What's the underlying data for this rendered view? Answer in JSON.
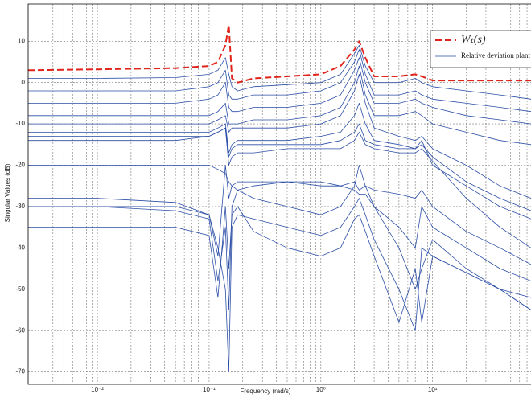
{
  "chart_data": {
    "type": "line",
    "xlabel": "Frequency (rad/s)",
    "ylabel": "Singular Values (dB)",
    "xscale": "log",
    "grid": true,
    "legend": "upper right",
    "xlim": [
      0.0024,
      76
    ],
    "ylim": [
      -73,
      19
    ],
    "xticks": [
      {
        "value": 0.01,
        "label": "10⁻²"
      },
      {
        "value": 0.1,
        "label": "10⁻¹"
      },
      {
        "value": 1,
        "label": "10⁰"
      },
      {
        "value": 10,
        "label": "10¹"
      }
    ],
    "xminorticks": [
      0.003,
      0.004,
      0.005,
      0.006,
      0.007,
      0.008,
      0.009,
      0.02,
      0.03,
      0.04,
      0.05,
      0.06,
      0.07,
      0.08,
      0.09,
      0.2,
      0.3,
      0.4,
      0.5,
      0.6,
      0.7,
      0.8,
      0.9,
      2,
      3,
      4,
      5,
      6,
      7,
      8,
      9,
      20,
      30,
      40,
      50,
      60,
      70
    ],
    "yticks": [
      -70,
      -60,
      -50,
      -40,
      -30,
      -20,
      -10,
      0,
      10
    ],
    "x": [
      0.0024,
      0.01,
      0.05,
      0.1,
      0.12,
      0.14,
      0.15,
      0.16,
      0.18,
      0.25,
      0.5,
      1,
      1.5,
      2,
      2.2,
      2.5,
      3,
      5,
      7,
      8,
      10,
      20,
      40,
      76
    ],
    "series": [
      {
        "name": "Wₜ(s)",
        "color": "#e0241b",
        "dash": true,
        "values": [
          3,
          3.2,
          3.5,
          4,
          5,
          9,
          14,
          1,
          0,
          1,
          1.5,
          2,
          4,
          8,
          10,
          6,
          1.5,
          1.5,
          2,
          1.5,
          0.5,
          0.5,
          0.5,
          0.5
        ]
      },
      {
        "name": "Relative deviation plant",
        "color": "#2b4ea6",
        "values": [
          1,
          1,
          1.2,
          2,
          3,
          6,
          2,
          -1,
          -2,
          -1,
          -0.5,
          0,
          2,
          7,
          9,
          4,
          0,
          0,
          1,
          0,
          -1,
          -2,
          -3,
          -4
        ]
      },
      {
        "color": "#2b4ea6",
        "values": [
          -2,
          -2,
          -2,
          -1,
          0,
          3,
          -3,
          -4,
          -4,
          -3,
          -3,
          -2,
          0,
          5,
          8,
          2,
          -3,
          -3,
          -2,
          -3,
          -4,
          -5,
          -6,
          -7
        ]
      },
      {
        "color": "#2b4ea6",
        "values": [
          -5,
          -5,
          -5,
          -4,
          -3,
          0,
          -6,
          -7,
          -7,
          -6,
          -6,
          -5,
          -3,
          3,
          6,
          0,
          -5,
          -5,
          -4,
          -5,
          -6,
          -8,
          -9,
          -10
        ]
      },
      {
        "color": "#2b4ea6",
        "values": [
          -8,
          -8,
          -8,
          -8,
          -7,
          -5,
          -10,
          -10,
          -10,
          -9,
          -9,
          -8,
          -6,
          0,
          4,
          -3,
          -8,
          -8,
          -7,
          -8,
          -10,
          -12,
          -14,
          -15
        ]
      },
      {
        "color": "#2b4ea6",
        "values": [
          -10,
          -10,
          -10,
          -10,
          -9,
          -8,
          -12,
          -11,
          -11,
          -11,
          -11,
          -10,
          -8,
          -2,
          2,
          -5,
          -11,
          -13,
          -14,
          -13,
          -16,
          -20,
          -25,
          -28
        ]
      },
      {
        "color": "#2b4ea6",
        "values": [
          -12,
          -12,
          -12,
          -12,
          -11,
          -10,
          -17,
          -15,
          -14,
          -14,
          -14,
          -13,
          -12,
          -8,
          -5,
          -10,
          -14,
          -15,
          -16,
          -14,
          -20,
          -25,
          -30,
          -33
        ]
      },
      {
        "color": "#2b4ea6",
        "values": [
          -14,
          -14,
          -14,
          -13,
          -12,
          -11,
          -18,
          -16,
          -15,
          -15,
          -15,
          -15,
          -14,
          -12,
          -10,
          -14,
          -15,
          -16,
          -16,
          -15,
          -18,
          -24,
          -28,
          -31
        ]
      },
      {
        "color": "#2b4ea6",
        "values": [
          -13,
          -13,
          -13,
          -13,
          -12,
          -11,
          -20,
          -18,
          -17,
          -17,
          -16,
          -16,
          -16,
          -14,
          -12,
          -15,
          -16,
          -17,
          -17,
          -16,
          -19,
          -28,
          -35,
          -40
        ]
      },
      {
        "color": "#2b4ea6",
        "values": [
          -30,
          -30,
          -30,
          -32,
          -42,
          -20,
          -28,
          -25,
          -24,
          -24,
          -24,
          -24,
          -25,
          -24,
          -26,
          -25,
          -26,
          -27,
          -28,
          -26,
          -30,
          -36,
          -40,
          -44
        ]
      },
      {
        "color": "#2b4ea6",
        "values": [
          -30,
          -30,
          -31,
          -33,
          -48,
          -35,
          -55,
          -30,
          -26,
          -25,
          -24,
          -25,
          -25,
          -26,
          -27,
          -27,
          -30,
          -35,
          -40,
          -30,
          -35,
          -40,
          -45,
          -48
        ]
      },
      {
        "color": "#2b4ea6",
        "values": [
          -28,
          -28,
          -29,
          -32,
          -40,
          -50,
          -70,
          -35,
          -32,
          -33,
          -35,
          -37,
          -35,
          -30,
          -28,
          -32,
          -38,
          -50,
          -60,
          -40,
          -42,
          -46,
          -50,
          -52
        ]
      },
      {
        "color": "#2b4ea6",
        "values": [
          -35,
          -35,
          -35,
          -37,
          -52,
          -30,
          -45,
          -32,
          -30,
          -36,
          -40,
          -42,
          -40,
          -33,
          -32,
          -36,
          -42,
          -58,
          -45,
          -58,
          -42,
          -46,
          -50,
          -55
        ]
      },
      {
        "color": "#2b4ea6",
        "values": [
          -20,
          -20,
          -20,
          -20,
          -21,
          -22,
          -24,
          -25,
          -26,
          -28,
          -30,
          -32,
          -30,
          -25,
          -20,
          -25,
          -30,
          -40,
          -50,
          -45,
          -38,
          -45,
          -50,
          -55
        ]
      }
    ]
  }
}
